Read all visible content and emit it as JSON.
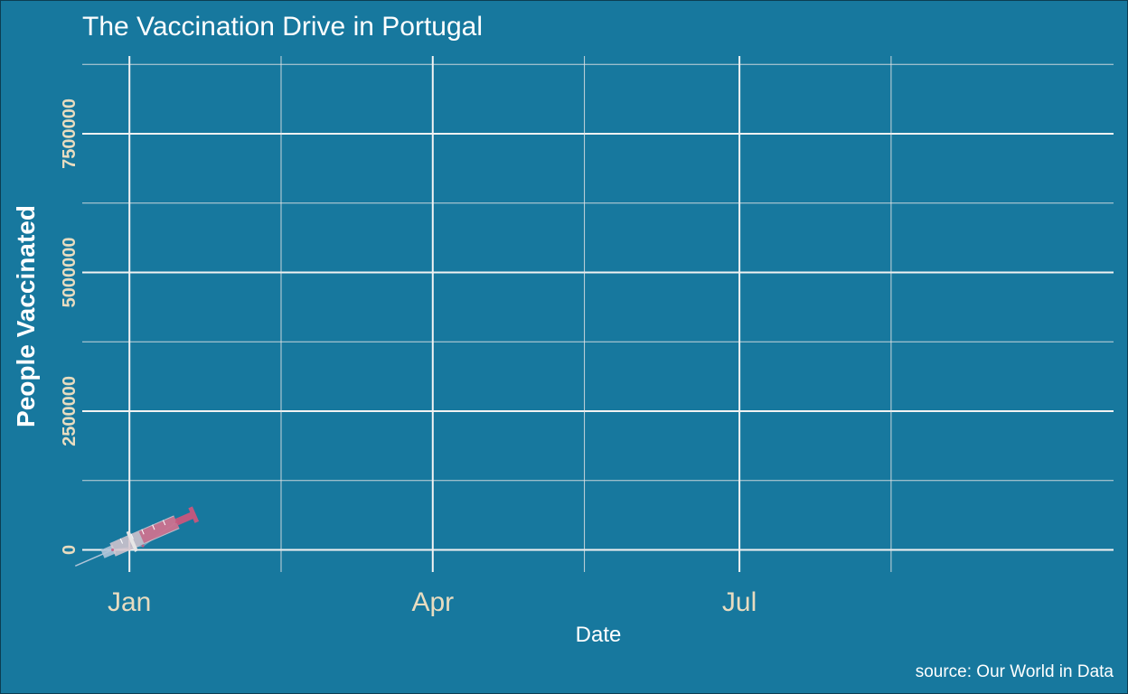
{
  "chart_data": {
    "type": "line",
    "title": "The Vaccination Drive in Portugal",
    "xlabel": "Date",
    "ylabel": "People Vaccinated",
    "caption": "source: Our World in Data",
    "x_ticks": [
      "Jan",
      "Apr",
      "Jul"
    ],
    "x_tick_dates": [
      "2021-01-01",
      "2021-04-01",
      "2021-07-01"
    ],
    "xlim": [
      "2020-12-18",
      "2021-10-20"
    ],
    "y_ticks": [
      0,
      2500000,
      5000000,
      7500000
    ],
    "y_tick_labels": [
      "0",
      "2500000",
      "5000000",
      "7500000"
    ],
    "ylim": [
      -400000,
      8900000
    ],
    "grid": true,
    "series": [
      {
        "dates": [
          "2020-12-27",
          "2021-01-05",
          "2021-01-15"
        ],
        "values": [
          0,
          70000,
          500000
        ]
      }
    ],
    "marker_icon": "syringe-icon",
    "colors": {
      "background": "#17789e",
      "grid": "#f2f2f2",
      "tick_text": "#e8dcc0",
      "title_text": "#ffffff",
      "syringe_barrel": "#d8c7cf",
      "syringe_fluid": "#c65a7e",
      "syringe_plunger": "#c0587e",
      "syringe_needle": "#b0c4d8"
    }
  }
}
